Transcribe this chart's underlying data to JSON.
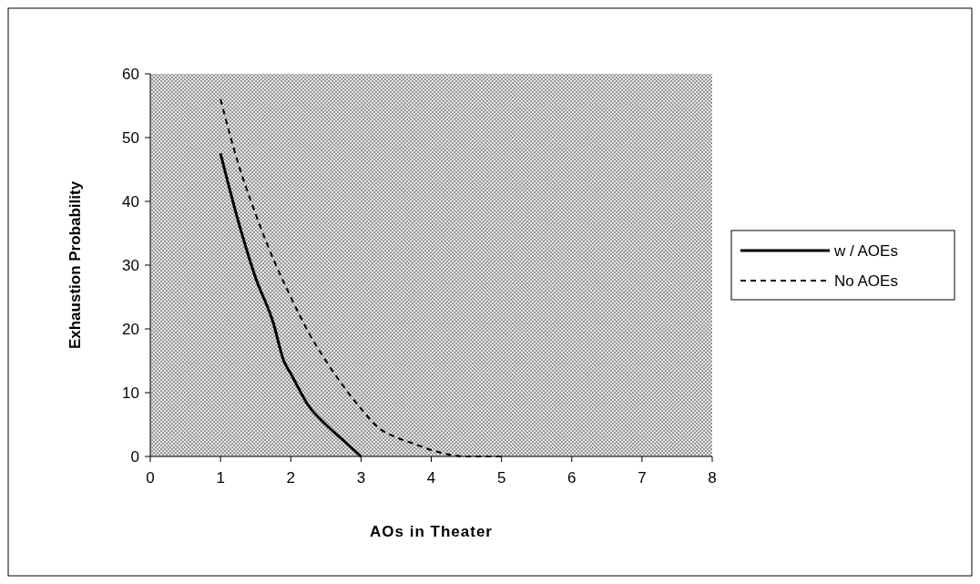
{
  "chart_data": {
    "type": "line",
    "xlabel": "AOs in Theater",
    "ylabel": "Exhaustion Probability",
    "xlim": [
      0,
      8
    ],
    "xticks": [
      0,
      1,
      2,
      3,
      4,
      5,
      6,
      7,
      8
    ],
    "ylim": [
      0,
      60
    ],
    "yticks": [
      0,
      10,
      20,
      30,
      40,
      50,
      60
    ],
    "legend": "right",
    "grid": false,
    "series": [
      {
        "name": "w / AOEs",
        "color": "#000000",
        "line_style": "solid",
        "x": [
          1,
          1.25,
          1.5,
          1.75,
          1.9,
          2,
          2.25,
          2.5,
          2.75,
          3
        ],
        "values": [
          47.5,
          37,
          28,
          21,
          15,
          13,
          8,
          5,
          2.5,
          0
        ]
      },
      {
        "name": "No AOEs",
        "color": "#000000",
        "line_style": "dashed",
        "x": [
          1,
          1.25,
          1.5,
          1.75,
          2,
          2.25,
          2.5,
          2.75,
          3,
          3.25,
          3.5,
          3.75,
          4,
          4.25,
          4.5,
          5
        ],
        "values": [
          56,
          46,
          38,
          31,
          25,
          19.5,
          15,
          11,
          7.5,
          4.5,
          3,
          2,
          1,
          0.3,
          0,
          0
        ]
      }
    ]
  }
}
